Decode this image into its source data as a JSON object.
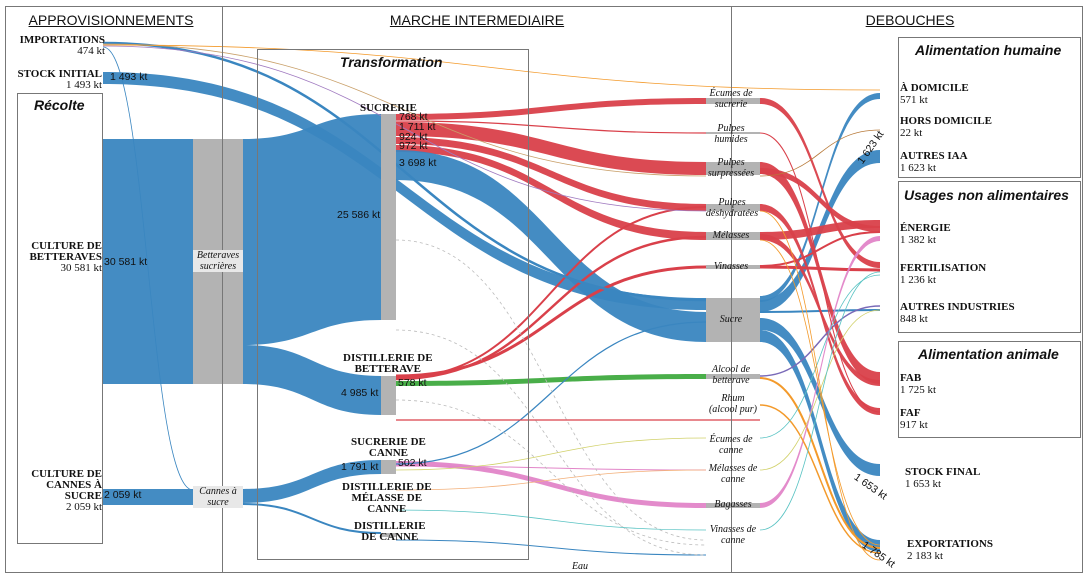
{
  "sections": {
    "approvisionnements": "APPROVISIONNEMENTS",
    "marche": "MARCHE INTERMEDIAIRE",
    "debouches": "DEBOUCHES"
  },
  "boxes": {
    "recolte": "Récolte",
    "transformation": "Transformation",
    "alimentation_humaine": "Alimentation humaine",
    "usages_non_alimentaires": "Usages non alimentaires",
    "alimentation_animale": "Alimentation animale"
  },
  "sources": {
    "importations": {
      "name": "IMPORTATIONS",
      "value": "474 kt"
    },
    "stock_initial": {
      "name": "STOCK INITIAL",
      "value": "1 493 kt",
      "flow": "1 493 kt"
    },
    "culture_betteraves": {
      "name1": "CULTURE DE",
      "name2": "BETTERAVES",
      "value": "30 581 kt",
      "flow": "30 581 kt"
    },
    "culture_cannes": {
      "name1": "CULTURE DE",
      "name2": "CANNES À",
      "name3": "SUCRE",
      "value": "2 059 kt",
      "flow": "2 059 kt"
    }
  },
  "collectors": {
    "betteraves": {
      "l1": "Betteraves",
      "l2": "sucrières"
    },
    "cannes": {
      "l1": "Cannes à",
      "l2": "sucre"
    }
  },
  "processes": {
    "sucrerie": {
      "name": "SUCRERIE",
      "in_value": "25 586 kt",
      "outs": [
        "768 kt",
        "1 711 kt",
        "924 kt",
        "972 kt",
        "3 698 kt"
      ]
    },
    "distillerie_betterave": {
      "l1": "DISTILLERIE DE",
      "l2": "BETTERAVE",
      "in_value": "4 985 kt",
      "out_value": "578 kt"
    },
    "sucrerie_canne": {
      "l1": "SUCRERIE DE",
      "l2": "CANNE",
      "in_value": "1 791 kt",
      "out_value": "502 kt"
    },
    "distillerie_melasse": {
      "l1": "DISTILLERIE DE",
      "l2": "MÉLASSE DE",
      "l3": "CANNE"
    },
    "distillerie_canne": {
      "l1": "DISTILLERIE",
      "l2": "DE CANNE"
    }
  },
  "intermediates": {
    "ecumes_sucrerie": {
      "l1": "Écumes de",
      "l2": "sucrerie"
    },
    "pulpes_humides": {
      "l1": "Pulpes",
      "l2": "humides"
    },
    "pulpes_surpressees": {
      "l1": "Pulpes",
      "l2": "surpressées"
    },
    "pulpes_deshydratees": {
      "l1": "Pulpes",
      "l2": "déshydratées"
    },
    "melasses": {
      "l1": "Mélasses"
    },
    "vinasses": {
      "l1": "Vinasses"
    },
    "sucre": {
      "l1": "Sucre"
    },
    "alcool_betterave": {
      "l1": "Alcool de",
      "l2": "betterave"
    },
    "rhum": {
      "l1": "Rhum",
      "l2": "(alcool pur)"
    },
    "ecumes_canne": {
      "l1": "Écumes de",
      "l2": "canne"
    },
    "melasses_canne": {
      "l1": "Mélasses de",
      "l2": "canne"
    },
    "bagasses": {
      "l1": "Bagasses"
    },
    "vinasses_canne": {
      "l1": "Vinasses de",
      "l2": "canne"
    },
    "eau": {
      "l1": "Eau"
    }
  },
  "destinations": {
    "a_domicile": {
      "name": "À DOMICILE",
      "value": "571 kt"
    },
    "hors_domicile": {
      "name": "HORS DOMICILE",
      "value": "22 kt"
    },
    "autres_iaa": {
      "name": "AUTRES IAA",
      "value": "1 623 kt",
      "flow": "1 623 kt"
    },
    "energie": {
      "name": "ÉNERGIE",
      "value": "1 382 kt"
    },
    "fertilisation": {
      "name": "FERTILISATION",
      "value": "1 236 kt"
    },
    "autres_industries": {
      "name": "AUTRES INDUSTRIES",
      "value": "848 kt"
    },
    "fab": {
      "name": "FAB",
      "value": "1 725 kt"
    },
    "faf": {
      "name": "FAF",
      "value": "917 kt"
    },
    "stock_final": {
      "name": "STOCK FINAL",
      "value": "1 653 kt",
      "flow": "1 653 kt"
    },
    "exportations": {
      "name": "EXPORTATIONS",
      "value": "2 183 kt",
      "flow": "1 785 kt"
    }
  },
  "colors": {
    "blue": "#3a86c0",
    "red": "#d9404a",
    "green": "#3faa3f",
    "pink": "#e285c8",
    "orange": "#f39a2b",
    "node_gray": "#b3b3b3"
  }
}
